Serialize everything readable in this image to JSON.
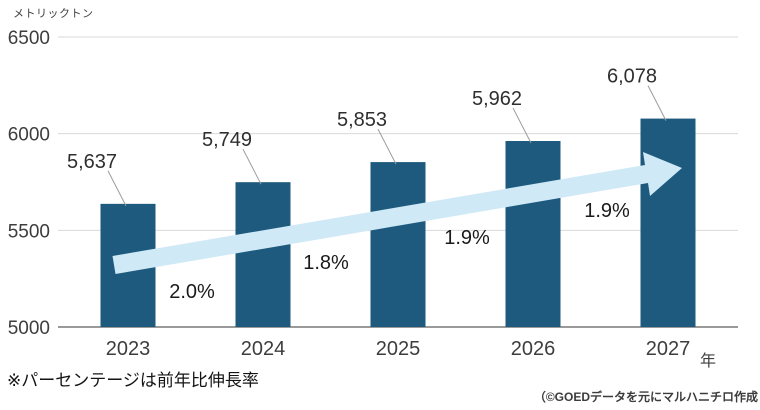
{
  "chart_data": {
    "type": "bar",
    "title": "",
    "unit_label": "メトリックトン",
    "xlabel": "年",
    "categories": [
      "2023",
      "2024",
      "2025",
      "2026",
      "2027"
    ],
    "values": [
      5637,
      5749,
      5853,
      5962,
      6078
    ],
    "value_labels": [
      "5,637",
      "5,749",
      "5,853",
      "5,962",
      "6,078"
    ],
    "growth_rates": [
      "2.0%",
      "1.8%",
      "1.9%",
      "1.9%"
    ],
    "yticks": [
      "6500",
      "6000",
      "5500",
      "5000"
    ],
    "ylim": [
      5000,
      6500
    ],
    "grid": true,
    "legend": "none",
    "bar_color": "#1d5a7d",
    "arrow_color": "#cfe9f7",
    "annotation_note": "growth arrow rises left-to-right across bars"
  },
  "footer": {
    "note": "※パーセンテージは前年比伸長率",
    "credit": "（©GOEDデータを元にマルハニチロ作成"
  }
}
